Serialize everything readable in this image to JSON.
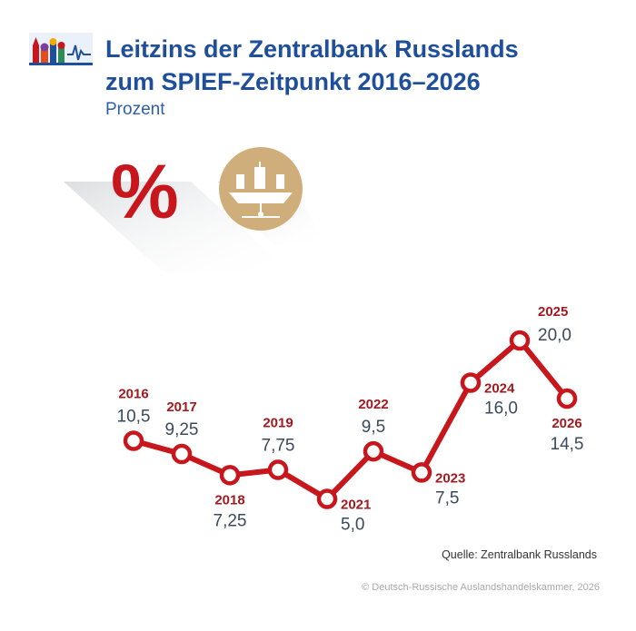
{
  "header": {
    "title_line1": "Leitzins der Zentralbank Russlands",
    "title_line2": "zum SPIEF-Zeitpunkt 2016–2026",
    "subtitle": "Prozent"
  },
  "icons": {
    "logo": "kremlin-skyline-logo-icon",
    "percent": "percent-icon",
    "ship": "ship-emblem-icon"
  },
  "percent_symbol": "%",
  "colors": {
    "title": "#1f4e9a",
    "line": "#c8161d",
    "year_label": "#a3191e",
    "value_label": "#3a4a5c",
    "emblem": "#cfae7c"
  },
  "chart_data": {
    "type": "line",
    "x": [
      "2016",
      "2017",
      "2018",
      "2019",
      "2021",
      "2022",
      "2023",
      "2024",
      "2025",
      "2026"
    ],
    "y": [
      10.5,
      9.25,
      7.25,
      7.75,
      5.0,
      9.5,
      7.5,
      16.0,
      20.0,
      14.5
    ],
    "value_labels": [
      "10,5",
      "9,25",
      "7,25",
      "7,75",
      "5,0",
      "9,5",
      "7,5",
      "16,0",
      "20,0",
      "14,5"
    ],
    "label_positions": [
      "above",
      "above",
      "below",
      "above",
      "below-right",
      "above",
      "below-right",
      "below-right",
      "above-right",
      "below"
    ]
  },
  "footer": {
    "source": "Quelle: Zentralbank Russlands",
    "copyright": "© Deutsch-Russische Auslandshandelskammer, 2026"
  }
}
